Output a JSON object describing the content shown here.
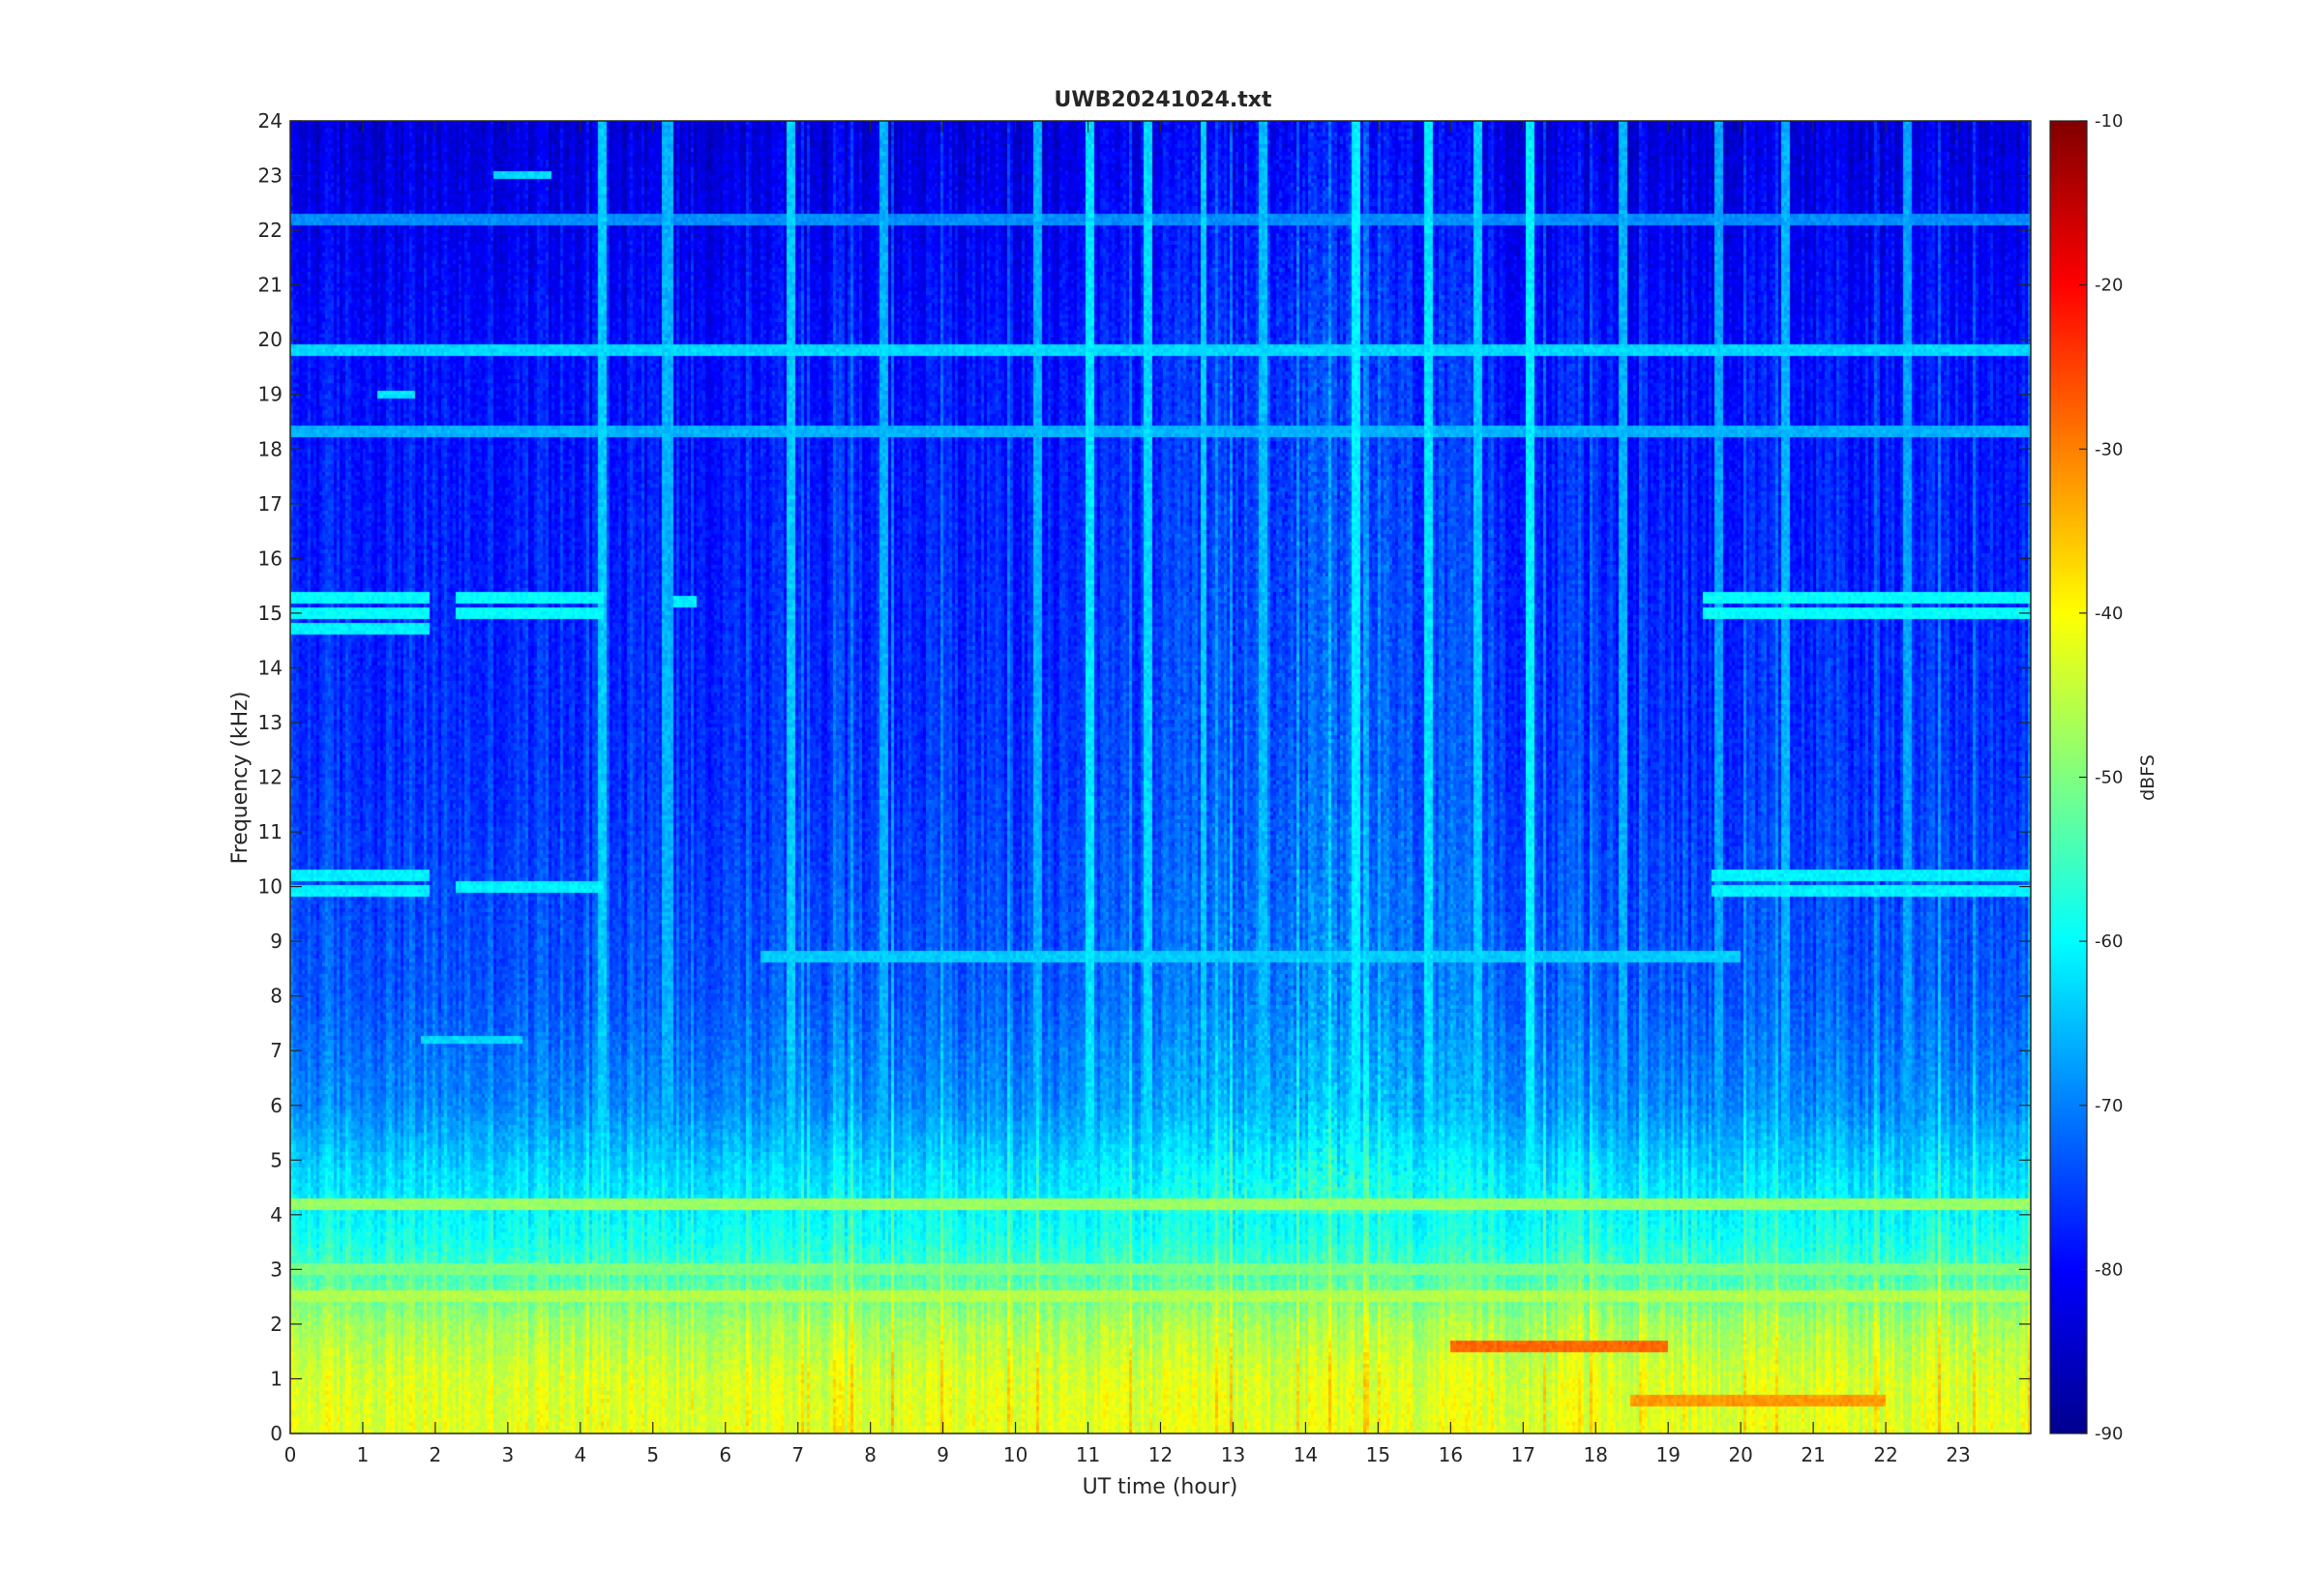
{
  "chart_data": {
    "type": "heatmap",
    "title": "UWB20241024.txt",
    "xlabel": "UT time (hour)",
    "ylabel": "Frequency (kHz)",
    "xlim": [
      0,
      24
    ],
    "ylim": [
      0,
      24
    ],
    "x_ticks": [
      0,
      1,
      2,
      3,
      4,
      5,
      6,
      7,
      8,
      9,
      10,
      11,
      12,
      13,
      14,
      15,
      16,
      17,
      18,
      19,
      20,
      21,
      22,
      23
    ],
    "y_ticks": [
      0,
      1,
      2,
      3,
      4,
      5,
      6,
      7,
      8,
      9,
      10,
      11,
      12,
      13,
      14,
      15,
      16,
      17,
      18,
      19,
      20,
      21,
      22,
      23,
      24
    ],
    "colormap": "jet",
    "colorbar": {
      "label": "dBFS",
      "range": [
        -90,
        -10
      ],
      "ticks": [
        -10,
        -20,
        -30,
        -40,
        -50,
        -60,
        -70,
        -80,
        -90
      ]
    },
    "value_model": {
      "background_floor": [
        {
          "freq_khz": 0.0,
          "dbfs": -42
        },
        {
          "freq_khz": 1.0,
          "dbfs": -43
        },
        {
          "freq_khz": 2.0,
          "dbfs": -47
        },
        {
          "freq_khz": 2.6,
          "dbfs": -52
        },
        {
          "freq_khz": 3.5,
          "dbfs": -58
        },
        {
          "freq_khz": 4.8,
          "dbfs": -63
        },
        {
          "freq_khz": 6.0,
          "dbfs": -69
        },
        {
          "freq_khz": 8.0,
          "dbfs": -73
        },
        {
          "freq_khz": 12.0,
          "dbfs": -76
        },
        {
          "freq_khz": 20.0,
          "dbfs": -79
        },
        {
          "freq_khz": 24.0,
          "dbfs": -83
        }
      ],
      "daytime_enhancement": {
        "start_hour": 10.5,
        "end_hour": 18,
        "dbfs": 5
      },
      "horizontal_lines": [
        {
          "freq_khz": 19.8,
          "start_hour": 0,
          "end_hour": 24,
          "dbfs": -63
        },
        {
          "freq_khz": 18.3,
          "start_hour": 0,
          "end_hour": 24,
          "dbfs": -66
        },
        {
          "freq_khz": 22.2,
          "start_hour": 0,
          "end_hour": 24,
          "dbfs": -69
        },
        {
          "freq_khz": 4.2,
          "start_hour": 0,
          "end_hour": 24,
          "dbfs": -48
        },
        {
          "freq_khz": 2.5,
          "start_hour": 0,
          "end_hour": 24,
          "dbfs": -46
        },
        {
          "freq_khz": 3.0,
          "start_hour": 0,
          "end_hour": 24,
          "dbfs": -50
        },
        {
          "freq_khz": 1.6,
          "start_hour": 16,
          "end_hour": 19,
          "dbfs": -28
        },
        {
          "freq_khz": 0.6,
          "start_hour": 18.5,
          "end_hour": 22,
          "dbfs": -32
        },
        {
          "freq_khz": 15.3,
          "start_hour": 0,
          "end_hour": 1.9,
          "dbfs": -60
        },
        {
          "freq_khz": 15.0,
          "start_hour": 0,
          "end_hour": 1.9,
          "dbfs": -60
        },
        {
          "freq_khz": 14.7,
          "start_hour": 0,
          "end_hour": 1.9,
          "dbfs": -61
        },
        {
          "freq_khz": 10.2,
          "start_hour": 0,
          "end_hour": 1.9,
          "dbfs": -61
        },
        {
          "freq_khz": 9.9,
          "start_hour": 0,
          "end_hour": 1.9,
          "dbfs": -61
        },
        {
          "freq_khz": 15.3,
          "start_hour": 2.3,
          "end_hour": 4.3,
          "dbfs": -60
        },
        {
          "freq_khz": 15.0,
          "start_hour": 2.3,
          "end_hour": 4.3,
          "dbfs": -60
        },
        {
          "freq_khz": 10.0,
          "start_hour": 2.3,
          "end_hour": 4.3,
          "dbfs": -61
        },
        {
          "freq_khz": 15.2,
          "start_hour": 5.3,
          "end_hour": 5.6,
          "dbfs": -61
        },
        {
          "freq_khz": 15.3,
          "start_hour": 19.5,
          "end_hour": 24,
          "dbfs": -60
        },
        {
          "freq_khz": 15.0,
          "start_hour": 19.5,
          "end_hour": 24,
          "dbfs": -60
        },
        {
          "freq_khz": 10.2,
          "start_hour": 19.6,
          "end_hour": 24,
          "dbfs": -61
        },
        {
          "freq_khz": 9.9,
          "start_hour": 19.6,
          "end_hour": 24,
          "dbfs": -61
        },
        {
          "freq_khz": 8.7,
          "start_hour": 6.5,
          "end_hour": 20,
          "dbfs": -64
        },
        {
          "freq_khz": 7.2,
          "start_hour": 1.8,
          "end_hour": 3.2,
          "dbfs": -63
        },
        {
          "freq_khz": 23.0,
          "start_hour": 2.8,
          "end_hour": 3.6,
          "dbfs": -63
        },
        {
          "freq_khz": 19.0,
          "start_hour": 1.2,
          "end_hour": 1.7,
          "dbfs": -62
        }
      ],
      "vertical_streaks": [
        {
          "hour": 4.3,
          "dbfs": -64
        },
        {
          "hour": 5.2,
          "dbfs": -66
        },
        {
          "hour": 6.9,
          "dbfs": -64
        },
        {
          "hour": 8.2,
          "dbfs": -66
        },
        {
          "hour": 10.3,
          "dbfs": -66
        },
        {
          "hour": 11.0,
          "dbfs": -62
        },
        {
          "hour": 11.8,
          "dbfs": -63
        },
        {
          "hour": 12.6,
          "dbfs": -64
        },
        {
          "hour": 13.4,
          "dbfs": -65
        },
        {
          "hour": 14.7,
          "dbfs": -61
        },
        {
          "hour": 15.7,
          "dbfs": -62
        },
        {
          "hour": 16.4,
          "dbfs": -64
        },
        {
          "hour": 17.1,
          "dbfs": -61
        },
        {
          "hour": 18.4,
          "dbfs": -66
        },
        {
          "hour": 19.7,
          "dbfs": -67
        },
        {
          "hour": 20.6,
          "dbfs": -66
        },
        {
          "hour": 22.3,
          "dbfs": -67
        }
      ]
    }
  }
}
